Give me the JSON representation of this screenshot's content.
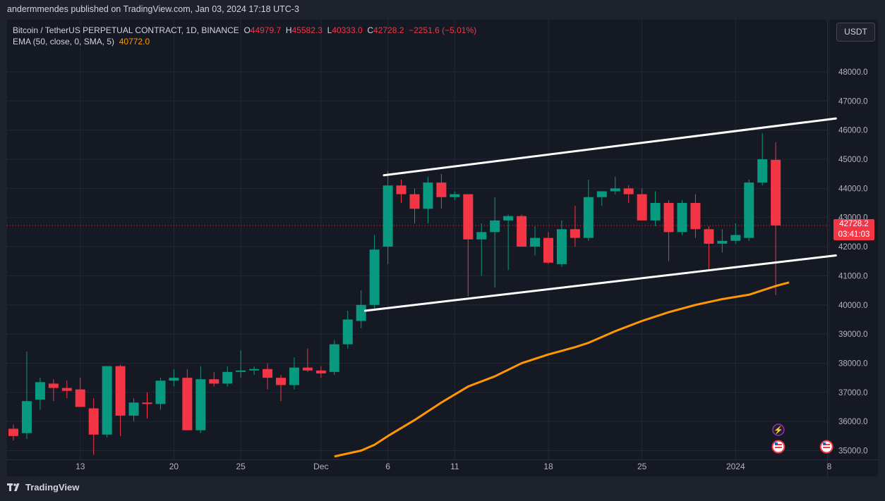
{
  "header": {
    "published": "andermmendes published on TradingView.com, Jan 03, 2024 17:18 UTC-3"
  },
  "legend": {
    "symbol": "Bitcoin / TetherUS PERPETUAL CONTRACT, 1D, BINANCE",
    "o_label": "O",
    "o": "44979.7",
    "h_label": "H",
    "h": "45582.3",
    "l_label": "L",
    "l": "40333.0",
    "c_label": "C",
    "c": "42728.2",
    "change": "−2251.6 (−5.01%)",
    "ema_label": "EMA (50, close, 0, SMA, 5)",
    "ema_value": "40772.0"
  },
  "currency": "USDT",
  "price_tag": {
    "price": "42728.2",
    "countdown": "03:41:03"
  },
  "footer": {
    "brand": "TradingView"
  },
  "colors": {
    "up": "#089981",
    "down": "#f23645",
    "ema": "#ff9800",
    "channel": "#ffffff"
  },
  "chart_data": {
    "type": "candlestick",
    "title": "Bitcoin / TetherUS PERPETUAL CONTRACT, 1D, BINANCE",
    "y_ticks": [
      "35000.0",
      "36000.0",
      "37000.0",
      "38000.0",
      "39000.0",
      "40000.0",
      "41000.0",
      "42000.0",
      "43000.0",
      "44000.0",
      "45000.0",
      "46000.0",
      "47000.0",
      "48000.0"
    ],
    "x_ticks": [
      "13",
      "20",
      "25",
      "Dec",
      "6",
      "11",
      "18",
      "25",
      "2024",
      "8"
    ],
    "last_price": 42728.2,
    "candles": [
      {
        "o": 35750,
        "h": 35900,
        "l": 35350,
        "c": 35500
      },
      {
        "o": 35600,
        "h": 38400,
        "l": 35400,
        "c": 36700
      },
      {
        "o": 36750,
        "h": 37500,
        "l": 36400,
        "c": 37350
      },
      {
        "o": 37300,
        "h": 37450,
        "l": 36700,
        "c": 37150
      },
      {
        "o": 37150,
        "h": 37400,
        "l": 36800,
        "c": 37050
      },
      {
        "o": 37100,
        "h": 37500,
        "l": 36600,
        "c": 36500
      },
      {
        "o": 36450,
        "h": 36800,
        "l": 34850,
        "c": 35550
      },
      {
        "o": 35550,
        "h": 37900,
        "l": 35450,
        "c": 37900
      },
      {
        "o": 37900,
        "h": 37950,
        "l": 35500,
        "c": 36200
      },
      {
        "o": 36200,
        "h": 36800,
        "l": 36000,
        "c": 36650
      },
      {
        "o": 36650,
        "h": 37000,
        "l": 36100,
        "c": 36600
      },
      {
        "o": 36600,
        "h": 37500,
        "l": 36400,
        "c": 37400
      },
      {
        "o": 37400,
        "h": 37800,
        "l": 37200,
        "c": 37500
      },
      {
        "o": 37500,
        "h": 37800,
        "l": 35700,
        "c": 35700
      },
      {
        "o": 35700,
        "h": 37900,
        "l": 35600,
        "c": 37450
      },
      {
        "o": 37450,
        "h": 37700,
        "l": 37200,
        "c": 37300
      },
      {
        "o": 37300,
        "h": 37900,
        "l": 37200,
        "c": 37700
      },
      {
        "o": 37700,
        "h": 38450,
        "l": 37500,
        "c": 37750
      },
      {
        "o": 37750,
        "h": 37900,
        "l": 37600,
        "c": 37800
      },
      {
        "o": 37800,
        "h": 38000,
        "l": 37100,
        "c": 37500
      },
      {
        "o": 37500,
        "h": 37600,
        "l": 36700,
        "c": 37250
      },
      {
        "o": 37250,
        "h": 38200,
        "l": 37100,
        "c": 37850
      },
      {
        "o": 37850,
        "h": 38500,
        "l": 37700,
        "c": 37750
      },
      {
        "o": 37750,
        "h": 37900,
        "l": 37500,
        "c": 37650
      },
      {
        "o": 37700,
        "h": 38800,
        "l": 37600,
        "c": 38650
      },
      {
        "o": 38650,
        "h": 39800,
        "l": 38500,
        "c": 39500
      },
      {
        "o": 39450,
        "h": 40500,
        "l": 39200,
        "c": 40000
      },
      {
        "o": 40000,
        "h": 42400,
        "l": 39800,
        "c": 41900
      },
      {
        "o": 42000,
        "h": 44600,
        "l": 41400,
        "c": 44100
      },
      {
        "o": 44100,
        "h": 44300,
        "l": 43500,
        "c": 43800
      },
      {
        "o": 43800,
        "h": 44000,
        "l": 42800,
        "c": 43300
      },
      {
        "o": 43300,
        "h": 44400,
        "l": 42800,
        "c": 44200
      },
      {
        "o": 44200,
        "h": 44500,
        "l": 43300,
        "c": 43700
      },
      {
        "o": 43700,
        "h": 43900,
        "l": 43600,
        "c": 43800
      },
      {
        "o": 43800,
        "h": 43800,
        "l": 40300,
        "c": 42250
      },
      {
        "o": 42250,
        "h": 42800,
        "l": 41000,
        "c": 42500
      },
      {
        "o": 42500,
        "h": 43700,
        "l": 40600,
        "c": 42900
      },
      {
        "o": 42900,
        "h": 43100,
        "l": 41200,
        "c": 43050
      },
      {
        "o": 43050,
        "h": 43100,
        "l": 42000,
        "c": 42000
      },
      {
        "o": 42000,
        "h": 42700,
        "l": 41700,
        "c": 42300
      },
      {
        "o": 42300,
        "h": 42500,
        "l": 41400,
        "c": 41450
      },
      {
        "o": 41400,
        "h": 42900,
        "l": 41300,
        "c": 42600
      },
      {
        "o": 42600,
        "h": 43400,
        "l": 42000,
        "c": 42300
      },
      {
        "o": 42300,
        "h": 44300,
        "l": 42200,
        "c": 43700
      },
      {
        "o": 43700,
        "h": 43900,
        "l": 43400,
        "c": 43900
      },
      {
        "o": 43900,
        "h": 44400,
        "l": 43800,
        "c": 44000
      },
      {
        "o": 44000,
        "h": 44100,
        "l": 43500,
        "c": 43800
      },
      {
        "o": 43800,
        "h": 44000,
        "l": 42900,
        "c": 42900
      },
      {
        "o": 42900,
        "h": 43900,
        "l": 42700,
        "c": 43500
      },
      {
        "o": 43500,
        "h": 43600,
        "l": 41500,
        "c": 42500
      },
      {
        "o": 42500,
        "h": 43600,
        "l": 42400,
        "c": 43500
      },
      {
        "o": 43500,
        "h": 43800,
        "l": 42300,
        "c": 42600
      },
      {
        "o": 42600,
        "h": 42700,
        "l": 41200,
        "c": 42100
      },
      {
        "o": 42100,
        "h": 42600,
        "l": 41800,
        "c": 42200
      },
      {
        "o": 42200,
        "h": 42800,
        "l": 42100,
        "c": 42400
      },
      {
        "o": 42300,
        "h": 44300,
        "l": 42200,
        "c": 44200
      },
      {
        "o": 44200,
        "h": 45900,
        "l": 44100,
        "c": 45000
      },
      {
        "o": 44979.7,
        "h": 45582.3,
        "l": 40333.0,
        "c": 42728.2
      }
    ],
    "ema": [
      {
        "i": 24,
        "v": 34800
      },
      {
        "i": 26,
        "v": 35000
      },
      {
        "i": 27,
        "v": 35200
      },
      {
        "i": 28,
        "v": 35500
      },
      {
        "i": 30,
        "v": 36050
      },
      {
        "i": 32,
        "v": 36650
      },
      {
        "i": 34,
        "v": 37200
      },
      {
        "i": 36,
        "v": 37550
      },
      {
        "i": 38,
        "v": 38000
      },
      {
        "i": 40,
        "v": 38300
      },
      {
        "i": 42,
        "v": 38550
      },
      {
        "i": 43,
        "v": 38700
      },
      {
        "i": 45,
        "v": 39100
      },
      {
        "i": 47,
        "v": 39450
      },
      {
        "i": 49,
        "v": 39750
      },
      {
        "i": 51,
        "v": 40000
      },
      {
        "i": 53,
        "v": 40200
      },
      {
        "i": 55,
        "v": 40350
      },
      {
        "i": 56,
        "v": 40500
      },
      {
        "i": 57,
        "v": 40650
      },
      {
        "i": 58,
        "v": 40772
      }
    ],
    "channel_lines": [
      {
        "from": {
          "i": 27.7,
          "v": 44450
        },
        "to": {
          "i": 61.5,
          "v": 46400
        }
      },
      {
        "from": {
          "i": 26.3,
          "v": 39800
        },
        "to": {
          "i": 61.5,
          "v": 41700
        }
      }
    ]
  }
}
